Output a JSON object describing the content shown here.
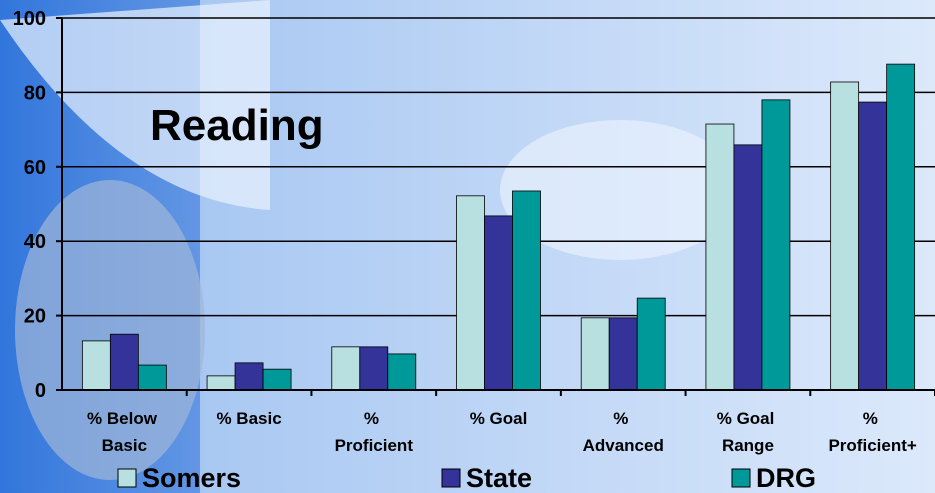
{
  "chart_data": {
    "type": "bar",
    "title": "Reading",
    "categories": [
      "% Below Basic",
      "% Basic",
      "% Proficient",
      "% Goal",
      "% Advanced",
      "% Goal Range",
      "% Proficient+"
    ],
    "series": [
      {
        "name": "Somers",
        "color": "#b8e0e0",
        "values": [
          13.2,
          3.8,
          11.6,
          52.2,
          19.4,
          71.5,
          82.8
        ]
      },
      {
        "name": "State",
        "color": "#333399",
        "values": [
          15,
          7.3,
          11.6,
          46.8,
          19.4,
          65.9,
          77.4
        ]
      },
      {
        "name": "DRG",
        "color": "#009999",
        "values": [
          6.7,
          5.6,
          9.7,
          53.5,
          24.7,
          78,
          87.6
        ]
      }
    ],
    "ylim": [
      0,
      100
    ],
    "yticks": [
      0,
      20,
      40,
      60,
      80,
      100
    ],
    "grid": true
  }
}
